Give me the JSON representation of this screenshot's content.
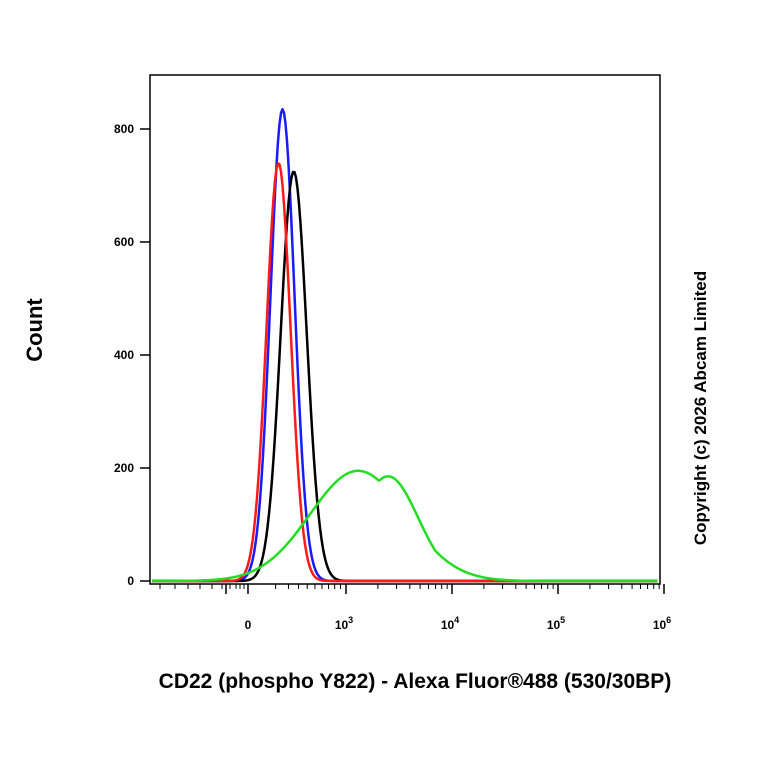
{
  "chart_data": {
    "type": "line",
    "title": "",
    "xlabel": "CD22 (phospho Y822) - Alexa Fluor®488 (530/30BP)",
    "ylabel": "Count",
    "x_scale": "biexponential",
    "y_ticks": [
      0,
      200,
      400,
      600,
      800
    ],
    "ylim": [
      0,
      900
    ],
    "x_ticks": [
      {
        "base": "0",
        "exp": ""
      },
      {
        "base": "10",
        "exp": "3"
      },
      {
        "base": "10",
        "exp": "4"
      },
      {
        "base": "10",
        "exp": "5"
      },
      {
        "base": "10",
        "exp": "6"
      }
    ],
    "series": [
      {
        "color": "#1a1aff",
        "peak_x": 150,
        "peak_y": 835
      },
      {
        "color": "#000000",
        "peak_x": 250,
        "peak_y": 725
      },
      {
        "color": "#ff1a1a",
        "peak_x": 120,
        "peak_y": 740
      },
      {
        "color": "#22dd22",
        "peak_x": 1300,
        "peak_y": 195
      }
    ],
    "annotation": "Copyright (c) 2026 Abcam Limited"
  }
}
